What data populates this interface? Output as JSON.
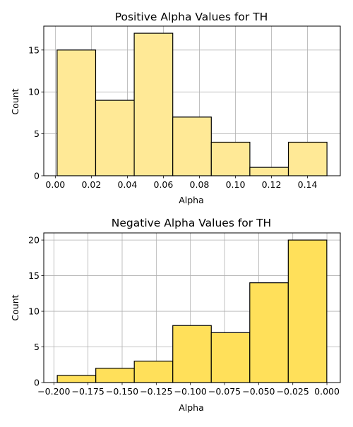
{
  "chart_data": [
    {
      "type": "bar",
      "title": "Positive Alpha Values for TH",
      "xlabel": "Alpha",
      "ylabel": "Count",
      "bin_edges": [
        0.001,
        0.0224,
        0.0438,
        0.0652,
        0.0866,
        0.108,
        0.1294,
        0.1508
      ],
      "values": [
        15,
        9,
        17,
        7,
        4,
        1,
        4
      ],
      "xlim": [
        -0.0064,
        0.1582
      ],
      "ylim": [
        0,
        17.85
      ],
      "xticks": [
        0.0,
        0.02,
        0.04,
        0.06,
        0.08,
        0.1,
        0.12,
        0.14
      ],
      "xtick_labels": [
        "0.00",
        "0.02",
        "0.04",
        "0.06",
        "0.08",
        "0.10",
        "0.12",
        "0.14"
      ],
      "yticks": [
        0,
        5,
        10,
        15
      ],
      "ytick_labels": [
        "0",
        "5",
        "10",
        "15"
      ],
      "grid": true,
      "bar_color": "#FFE996",
      "edge_color": "#000000"
    },
    {
      "type": "bar",
      "title": "Negative Alpha Values for TH",
      "xlabel": "Alpha",
      "ylabel": "Count",
      "bin_edges": [
        -0.1975,
        -0.1693,
        -0.1411,
        -0.1129,
        -0.0847,
        -0.0565,
        -0.0283,
        -0.0001
      ],
      "values": [
        1,
        2,
        3,
        8,
        7,
        14,
        20
      ],
      "xlim": [
        -0.2074,
        0.0098
      ],
      "ylim": [
        0,
        21
      ],
      "xticks": [
        -0.2,
        -0.175,
        -0.15,
        -0.125,
        -0.1,
        -0.075,
        -0.05,
        -0.025,
        0.0
      ],
      "xtick_labels": [
        "−0.200",
        "−0.175",
        "−0.150",
        "−0.125",
        "−0.100",
        "−0.075",
        "−0.050",
        "−0.025",
        "0.000"
      ],
      "yticks": [
        0,
        5,
        10,
        15,
        20
      ],
      "ytick_labels": [
        "0",
        "5",
        "10",
        "15",
        "20"
      ],
      "grid": true,
      "bar_color": "#FFE05A",
      "edge_color": "#000000"
    }
  ]
}
